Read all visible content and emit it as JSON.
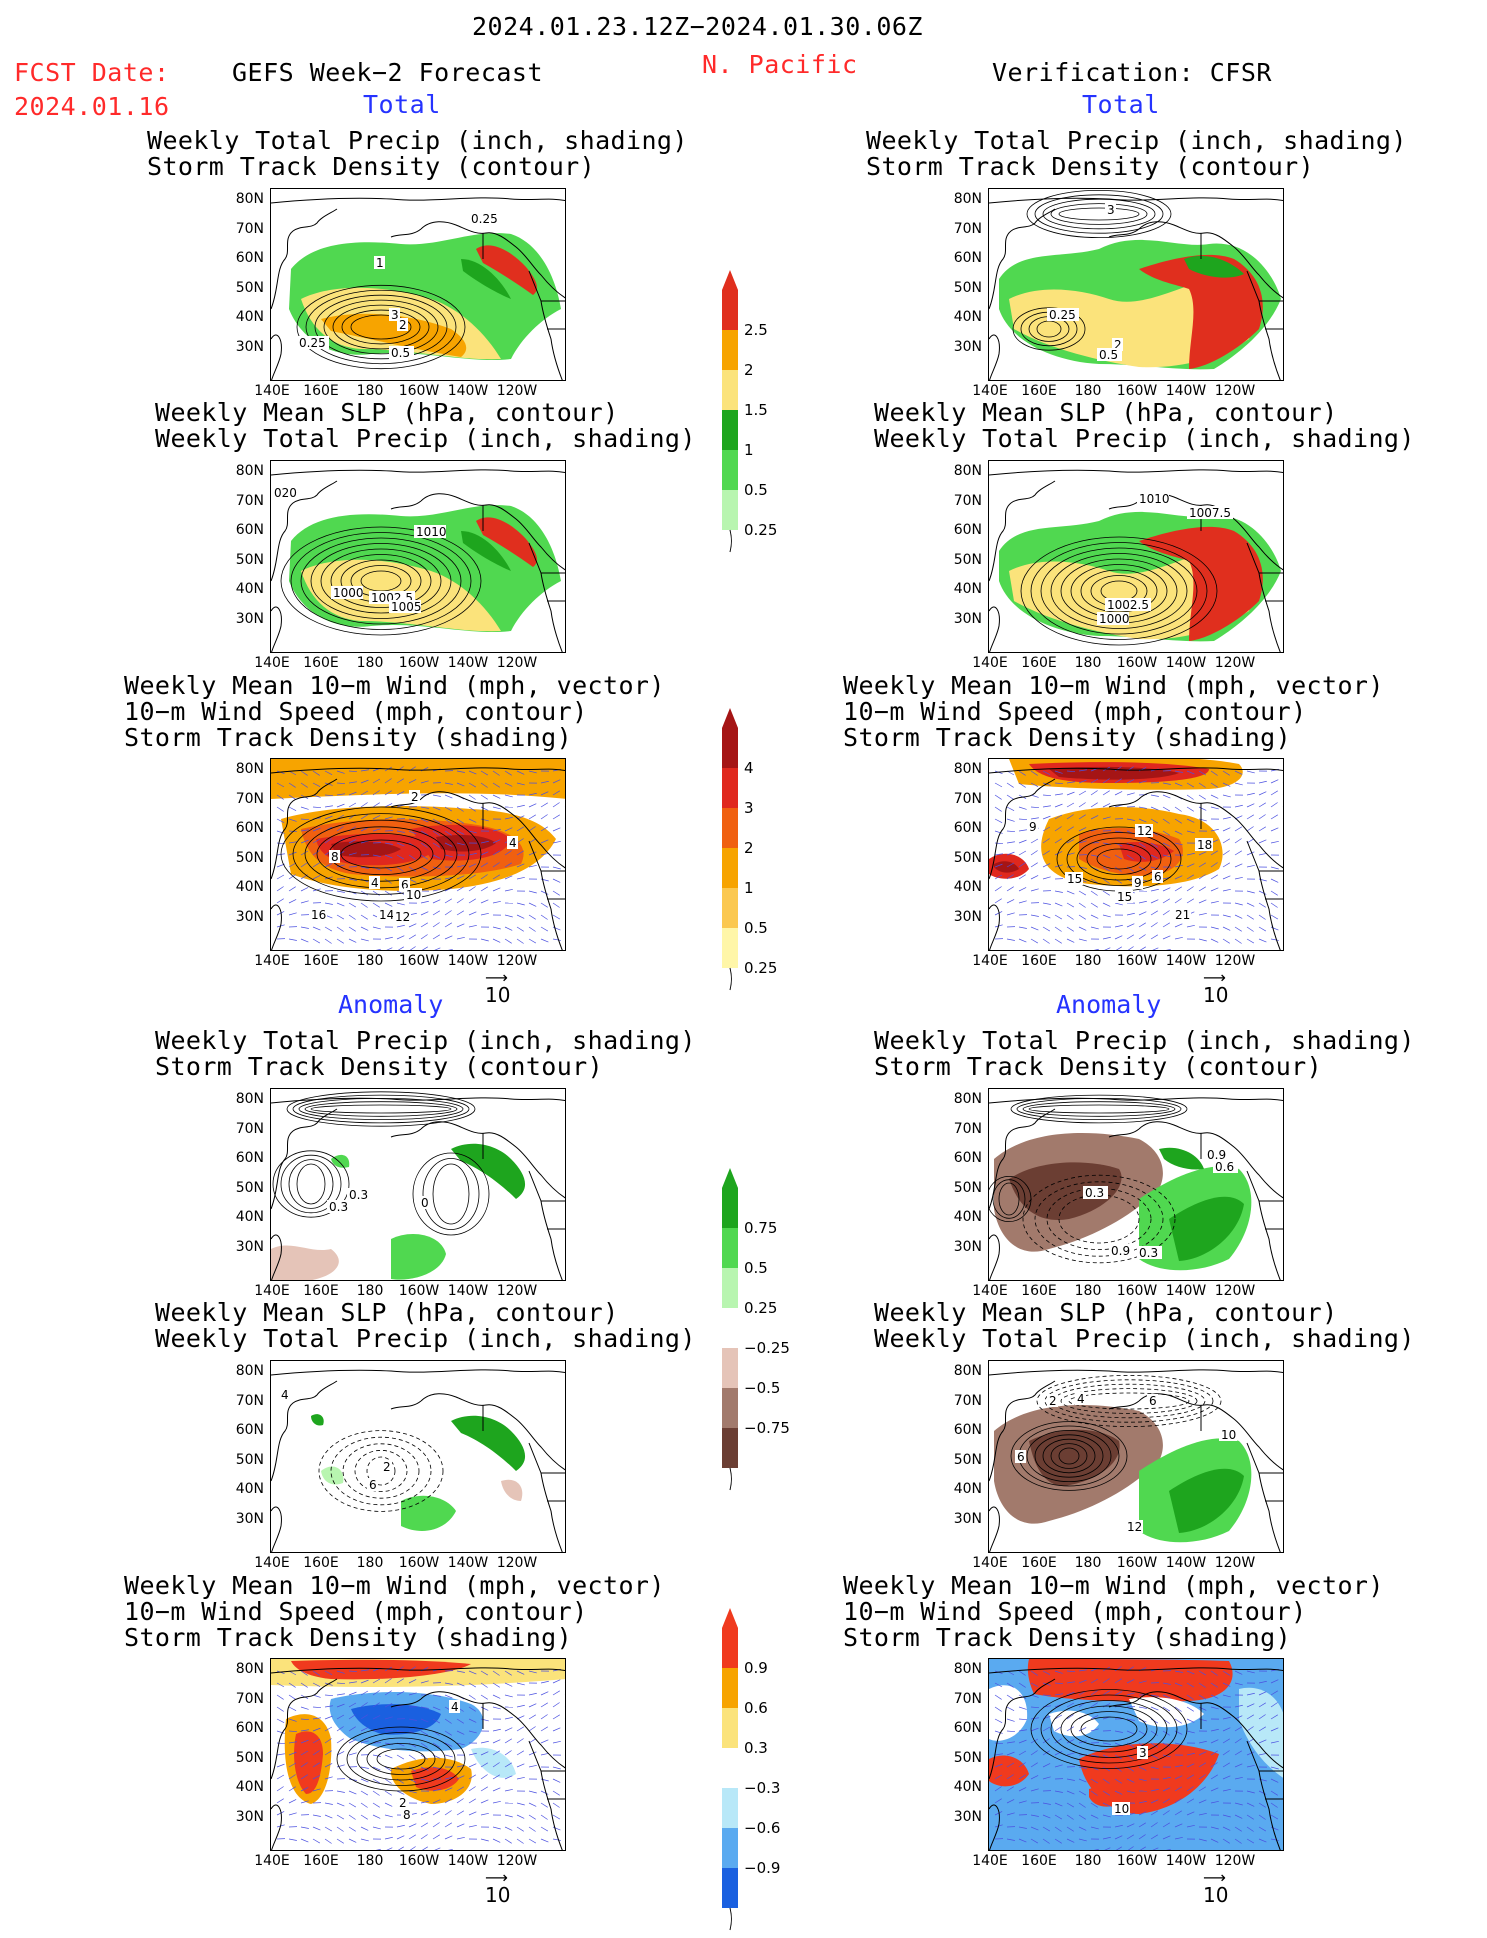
{
  "header": {
    "date_range": "2024.01.23.12Z−2024.01.30.06Z",
    "fcst_label": "FCST Date:",
    "fcst_date": "2024.01.16",
    "left_title": "GEFS Week−2 Forecast",
    "region": "N. Pacific",
    "right_title": "Verification: CFSR",
    "total_label": "Total",
    "anomaly_label": "Anomaly"
  },
  "titles": {
    "precip_track": "Weekly Total Precip (inch, shading)\nStorm Track Density (contour)",
    "slp_precip": "Weekly Mean SLP (hPa, contour)\nWeekly Total Precip (inch, shading)",
    "wind_track": "Weekly Mean 10−m Wind (mph, vector)\n10−m Wind Speed (mph, contour)\nStorm Track Density (shading)"
  },
  "axes": {
    "lat_ticks": [
      "80N",
      "70N",
      "60N",
      "50N",
      "40N",
      "30N"
    ],
    "lon_ticks": [
      "140E",
      "160E",
      "180",
      "160W",
      "140W",
      "120W"
    ]
  },
  "vector_ref": "10",
  "colorbars": {
    "precip_total": {
      "labels": [
        "2.5",
        "2",
        "1.5",
        "1",
        "0.5",
        "0.25"
      ],
      "colors": [
        "#e02f1e",
        "#f7a400",
        "#fbe37b",
        "#1ea51e",
        "#50d850",
        "#b8f5b0"
      ]
    },
    "track_total": {
      "labels": [
        "4",
        "3",
        "2",
        "1",
        "0.5",
        "0.25"
      ],
      "colors": [
        "#a51515",
        "#e0281e",
        "#f06010",
        "#f7a400",
        "#fbc850",
        "#fff6a8"
      ]
    },
    "precip_anom": {
      "labels": [
        "0.75",
        "0.5",
        "0.25",
        "−0.25",
        "−0.5",
        "−0.75"
      ],
      "colors": [
        "#1ea51e",
        "#50d850",
        "#b8f5b0",
        "#ffffff",
        "#e5c4b8",
        "#a27a6c",
        "#6b3e33"
      ]
    },
    "track_anom": {
      "labels": [
        "0.9",
        "0.6",
        "0.3",
        "−0.3",
        "−0.6",
        "−0.9"
      ],
      "colors": [
        "#f03a1e",
        "#f7a400",
        "#fbe37b",
        "#ffffff",
        "#b8e8f8",
        "#5aaaf0",
        "#1a60e0"
      ]
    }
  },
  "contour_labels": {
    "p1": [
      "0.25",
      "1",
      "3",
      "2",
      "0.25",
      "0.5"
    ],
    "p2": [
      "1010",
      "020",
      "1000",
      "1002.5",
      "1005"
    ],
    "p3": [
      "2",
      "8",
      "4",
      "6",
      "10",
      "16",
      "14",
      "12",
      "4"
    ],
    "p4": [
      "3",
      "0.25",
      "2",
      "0.5"
    ],
    "p5": [
      "1010",
      "1007.5",
      "1000",
      "1002.5"
    ],
    "p6": [
      "9",
      "12",
      "18",
      "15",
      "9",
      "6",
      "15",
      "21"
    ],
    "p7": [
      "0.3",
      "0.3",
      "0"
    ],
    "p8": [
      "0.9",
      "0.6",
      "0.3",
      "0.9",
      "0.3"
    ],
    "p9": [
      "4",
      "2",
      "6"
    ],
    "p10": [
      "2",
      "4",
      "6",
      "6",
      "10",
      "12"
    ],
    "p11": [
      "4",
      "2",
      "8"
    ],
    "p12": [
      "3",
      "10"
    ]
  }
}
